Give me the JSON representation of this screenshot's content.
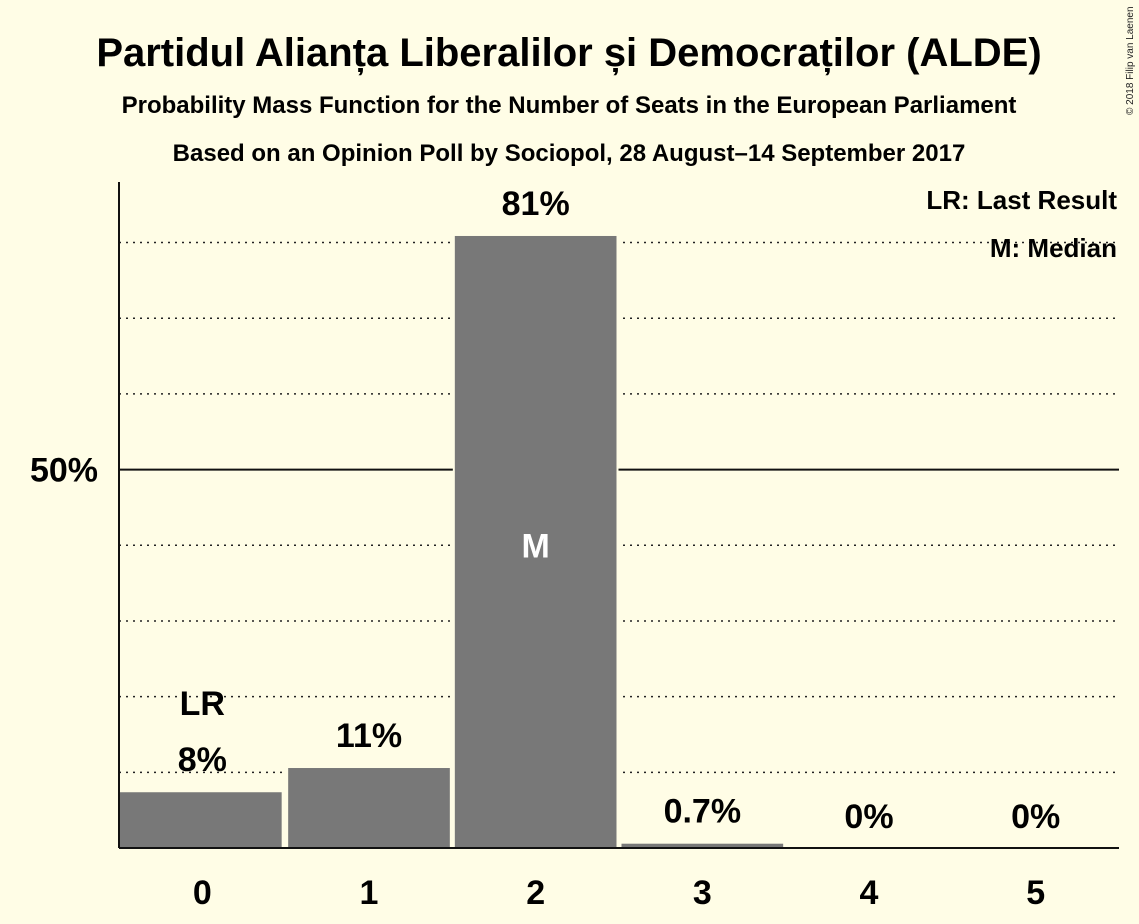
{
  "chart_data": {
    "type": "bar",
    "title": "Partidul Alianța Liberalilor și Democraților (ALDE)",
    "subtitle": "Probability Mass Function for the Number of Seats in the European Parliament",
    "subtitle2": "Based on an Opinion Poll by Sociopol, 28 August–14 September 2017",
    "categories": [
      "0",
      "1",
      "2",
      "3",
      "4",
      "5"
    ],
    "values": [
      0.075,
      0.107,
      0.81,
      0.007,
      0.0,
      0.0
    ],
    "value_labels": [
      "8%",
      "11%",
      "81%",
      "0.7%",
      "0%",
      "0%"
    ],
    "ylim": [
      0,
      0.88
    ],
    "yticks": [
      0.5
    ],
    "ytick_labels": [
      "50%"
    ],
    "gridlines_dotted": [
      0.1,
      0.2,
      0.3,
      0.4,
      0.6,
      0.7,
      0.8
    ],
    "last_result_index": 0,
    "last_result_label": "LR",
    "median_index": 2,
    "median_label": "M",
    "legend": [
      "LR: Last Result",
      "M: Median"
    ],
    "legend_position": "top-right",
    "bar_color": "#787878",
    "background": "#fffde6",
    "copyright": "© 2018 Filip van Laenen"
  }
}
